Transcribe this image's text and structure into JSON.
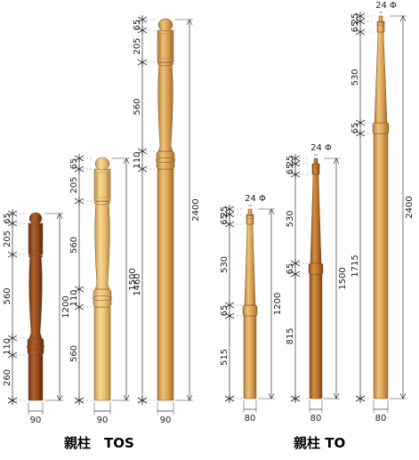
{
  "captions": {
    "left": "親柱　TOS",
    "right": "親柱 TO"
  },
  "colors": {
    "oak_light": "#e9c173",
    "oak_mid": "#d8a152",
    "oak_dark": "#b87432",
    "walnut": "#9a4e22",
    "walnut_dark": "#6e3414",
    "line": "#333333"
  },
  "posts": [
    {
      "id": "tos-1200",
      "series": "TOS",
      "total": "1200",
      "width": "90",
      "segments": [
        {
          "label": "65"
        },
        {
          "label": "205"
        },
        {
          "label": "560"
        },
        {
          "label": "110"
        },
        {
          "label": "260"
        }
      ]
    },
    {
      "id": "tos-1500",
      "series": "TOS",
      "total": "1500",
      "width": "90",
      "segments": [
        {
          "label": "65"
        },
        {
          "label": "205"
        },
        {
          "label": "560"
        },
        {
          "label": "110"
        },
        {
          "label": "560"
        }
      ]
    },
    {
      "id": "tos-2400",
      "series": "TOS",
      "total": "2400",
      "width": "90",
      "segments": [
        {
          "label": "65"
        },
        {
          "label": "205"
        },
        {
          "label": "560"
        },
        {
          "label": "110"
        },
        {
          "label": "1460"
        }
      ]
    },
    {
      "id": "to-1200",
      "series": "TO",
      "total": "1200",
      "width": "80",
      "tip": "24 Φ",
      "segments": [
        {
          "label": "25"
        },
        {
          "label": "65"
        },
        {
          "label": "530"
        },
        {
          "label": "65"
        },
        {
          "label": "515"
        }
      ]
    },
    {
      "id": "to-1500",
      "series": "TO",
      "total": "1500",
      "width": "80",
      "tip": "24 Φ",
      "segments": [
        {
          "label": "25"
        },
        {
          "label": "65"
        },
        {
          "label": "530"
        },
        {
          "label": "65"
        },
        {
          "label": "815"
        }
      ]
    },
    {
      "id": "to-2400",
      "series": "TO",
      "total": "2400",
      "width": "80",
      "tip": "24 Φ",
      "segments": [
        {
          "label": "25"
        },
        {
          "label": "65"
        },
        {
          "label": "530"
        },
        {
          "label": "65"
        },
        {
          "label": "1715"
        }
      ]
    }
  ]
}
